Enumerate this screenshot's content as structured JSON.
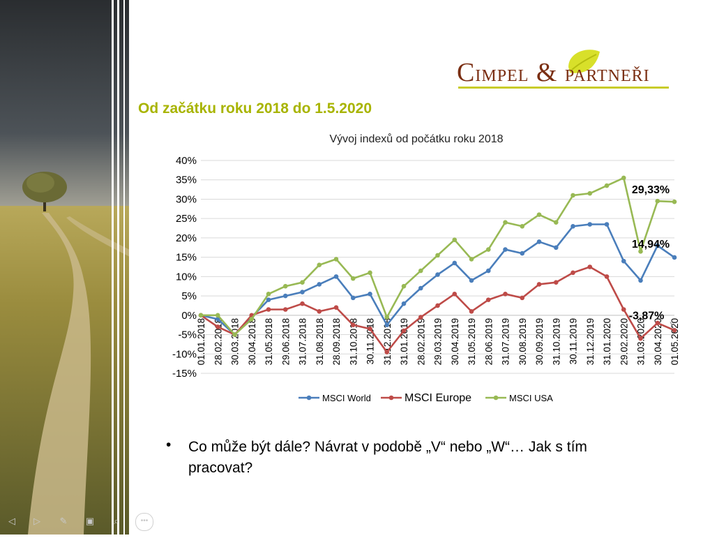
{
  "logo": {
    "text_big_1": "C",
    "text_small_1": "IMPEL",
    "text_amp": " & ",
    "text_small_2": "PARTNEŘI"
  },
  "slide_title": "Od začátku roku 2018 do 1.5.2020",
  "bullet_text": "Co může být dále? Návrat v podobě „V“ nebo „W“… Jak s tím pracovat?",
  "colors": {
    "world": "#4a7ebb",
    "europe": "#be4b48",
    "usa": "#98b954",
    "title": "#a8b400",
    "logo": "#7a2e12"
  },
  "chart_data": {
    "type": "line",
    "title": "Vývoj indexů od počátku roku 2018",
    "ylim": [
      -15,
      40
    ],
    "yticks": [
      "40%",
      "35%",
      "30%",
      "25%",
      "20%",
      "15%",
      "10%",
      "5%",
      "0%",
      "-5%",
      "-10%",
      "-15%"
    ],
    "ytick_values": [
      40,
      35,
      30,
      25,
      20,
      15,
      10,
      5,
      0,
      -5,
      -10,
      -15
    ],
    "grid": true,
    "legend_position": "bottom",
    "categories": [
      "01.01.2018",
      "28.02.2018",
      "30.03.2018",
      "30.04.2018",
      "31.05.2018",
      "29.06.2018",
      "31.07.2018",
      "31.08.2018",
      "28.09.2018",
      "31.10.2018",
      "30.11.2018",
      "31.12.2018",
      "31.01.2019",
      "28.02.2019",
      "29.03.2019",
      "30.04.2019",
      "31.05.2019",
      "28.06.2019",
      "31.07.2019",
      "30.08.2019",
      "30.09.2019",
      "31.10.2019",
      "30.11.2019",
      "31.12.2019",
      "31.01.2020",
      "29.02.2020",
      "31.03.2020",
      "30.04.2020",
      "01.05.2020"
    ],
    "series": [
      {
        "name": "MSCI World",
        "color": "#4a7ebb",
        "values": [
          0,
          -1,
          -5,
          -0.5,
          4,
          5,
          6,
          8,
          10,
          4.5,
          5.5,
          -2.5,
          3,
          7,
          10.5,
          13.5,
          9,
          11.5,
          17,
          16,
          19,
          17.5,
          23,
          23.5,
          23.5,
          14,
          9,
          18,
          14.94
        ]
      },
      {
        "name": "MSCI Europe",
        "color": "#be4b48",
        "values": [
          0,
          -3,
          -5,
          0,
          1.5,
          1.5,
          3,
          1,
          2,
          -2.5,
          -3.5,
          -9.5,
          -4,
          -0.5,
          2.5,
          5.5,
          1,
          4,
          5.5,
          4.5,
          8,
          8.5,
          11,
          12.5,
          10,
          1.5,
          -6,
          -2,
          -3.87
        ]
      },
      {
        "name": "MSCI USA",
        "color": "#98b954",
        "values": [
          0,
          0,
          -5,
          -1,
          5.5,
          7.5,
          8.5,
          13,
          14.5,
          9.5,
          11,
          -0.5,
          7.5,
          11.5,
          15.5,
          19.5,
          14.5,
          17,
          24,
          23,
          26,
          24,
          31,
          31.5,
          33.5,
          35.5,
          16.5,
          29.5,
          29.33
        ]
      }
    ],
    "annotations": [
      {
        "text": "29,33%",
        "series": "MSCI USA"
      },
      {
        "text": "14,94%",
        "series": "MSCI World"
      },
      {
        "text": "-3,87%",
        "series": "MSCI Europe"
      }
    ]
  }
}
